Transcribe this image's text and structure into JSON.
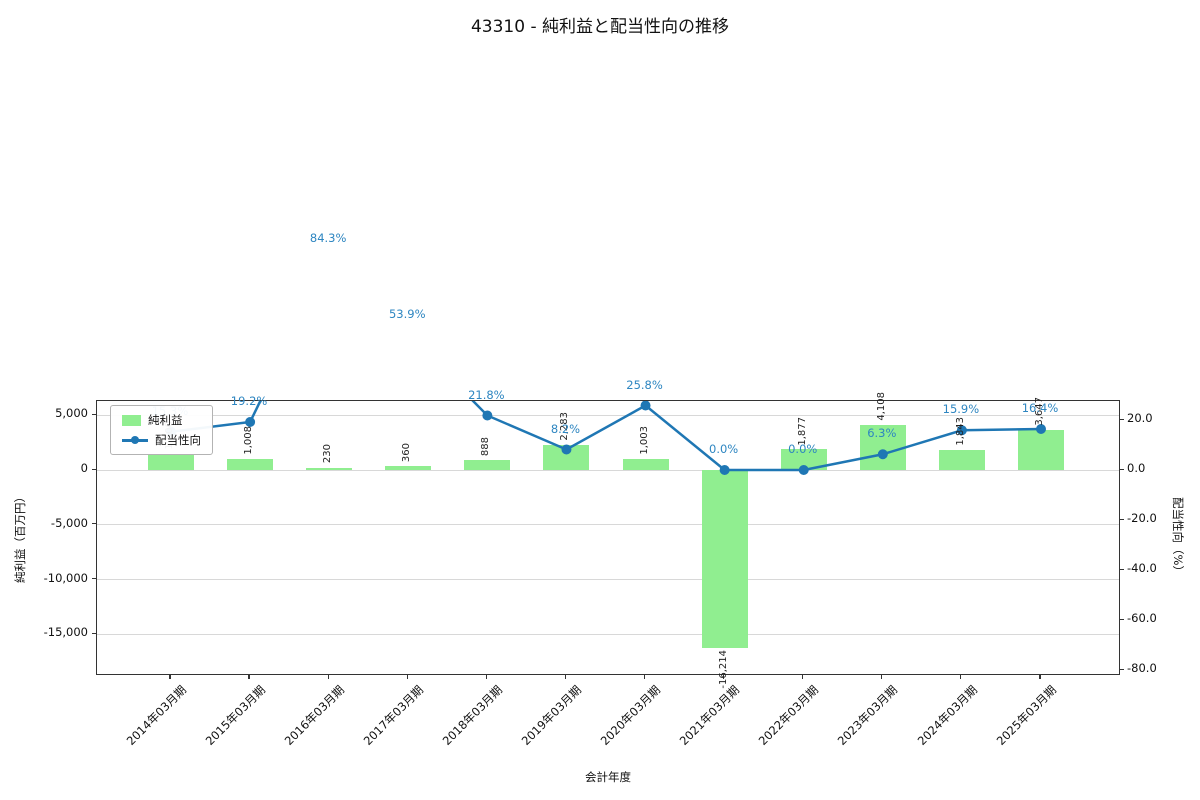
{
  "title": "43310 - 純利益と配当性向の推移",
  "chart_data": {
    "type": "bar",
    "subtype": "bar+line combo, dual axis",
    "x_axis": {
      "label": "会計年度",
      "categories": [
        "2014年03月期",
        "2015年03月期",
        "2016年03月期",
        "2017年03月期",
        "2018年03月期",
        "2019年03月期",
        "2020年03月期",
        "2021年03月期",
        "2022年03月期",
        "2023年03月期",
        "2024年03月期",
        "2025年03月期"
      ]
    },
    "left_axis": {
      "label": "純利益（百万円）",
      "tick_values": [
        5000,
        0,
        -5000,
        -10000,
        -15000
      ],
      "tick_labels": [
        "5,000",
        "0",
        "-5,000",
        "-10,000",
        "-15,000"
      ],
      "range": [
        -18800,
        6300
      ]
    },
    "right_axis": {
      "label": "配当性向（%）",
      "tick_values": [
        20,
        0,
        -20,
        -40,
        -60,
        -80
      ],
      "tick_labels": [
        "20.0",
        "0.0",
        "-20.0",
        "-40.0",
        "-60.0",
        "-80.0"
      ],
      "range": [
        -82.4,
        27.6
      ]
    },
    "series": [
      {
        "name": "純利益",
        "type": "bar",
        "color": "#90ee90",
        "values": [
          1500,
          1008,
          230,
          360,
          888,
          2283,
          1003,
          -16214,
          1877,
          4108,
          1843,
          3647
        ],
        "labels": [
          "1,500",
          "1,008",
          "230",
          "360",
          "888",
          "2,283",
          "1,003",
          "-16,214",
          "1,877",
          "4,108",
          "1,843",
          "3,647"
        ]
      },
      {
        "name": "配当性向",
        "type": "line",
        "color": "#1f77b4",
        "label_color": "#2e86c1",
        "values": [
          15.3,
          19.2,
          84.3,
          53.9,
          21.8,
          8.2,
          25.8,
          0.0,
          0.0,
          6.3,
          15.9,
          16.4
        ],
        "labels": [
          "15.3%",
          "19.2%",
          "84.3%",
          "53.9%",
          "21.8%",
          "8.2%",
          "25.8%",
          "0.0%",
          "0.0%",
          "6.3%",
          "15.9%",
          "16.4%"
        ]
      }
    ],
    "legend": {
      "position": "upper left",
      "items": [
        "純利益",
        "配当性向"
      ]
    },
    "grid": "horizontal"
  }
}
